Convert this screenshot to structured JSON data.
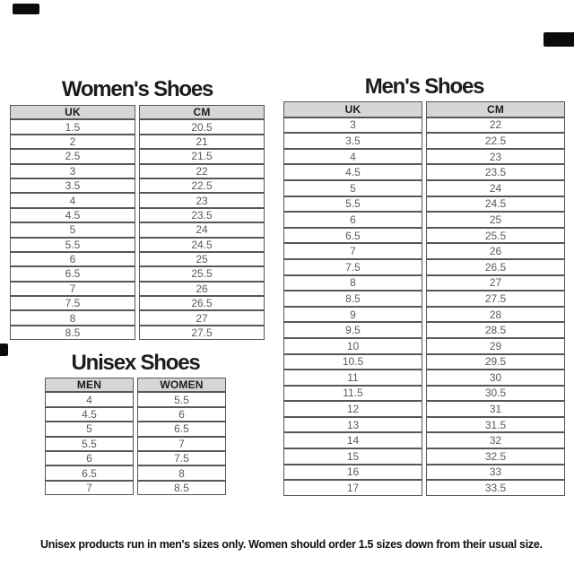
{
  "tables": {
    "womens": {
      "title": "Women's Shoes",
      "columns": [
        "UK",
        "CM"
      ],
      "rows": [
        [
          "1.5",
          "20.5"
        ],
        [
          "2",
          "21"
        ],
        [
          "2.5",
          "21.5"
        ],
        [
          "3",
          "22"
        ],
        [
          "3.5",
          "22.5"
        ],
        [
          "4",
          "23"
        ],
        [
          "4.5",
          "23.5"
        ],
        [
          "5",
          "24"
        ],
        [
          "5.5",
          "24.5"
        ],
        [
          "6",
          "25"
        ],
        [
          "6.5",
          "25.5"
        ],
        [
          "7",
          "26"
        ],
        [
          "7.5",
          "26.5"
        ],
        [
          "8",
          "27"
        ],
        [
          "8.5",
          "27.5"
        ]
      ]
    },
    "mens": {
      "title": "Men's Shoes",
      "columns": [
        "UK",
        "CM"
      ],
      "rows": [
        [
          "3",
          "22"
        ],
        [
          "3.5",
          "22.5"
        ],
        [
          "4",
          "23"
        ],
        [
          "4.5",
          "23.5"
        ],
        [
          "5",
          "24"
        ],
        [
          "5.5",
          "24.5"
        ],
        [
          "6",
          "25"
        ],
        [
          "6.5",
          "25.5"
        ],
        [
          "7",
          "26"
        ],
        [
          "7.5",
          "26.5"
        ],
        [
          "8",
          "27"
        ],
        [
          "8.5",
          "27.5"
        ],
        [
          "9",
          "28"
        ],
        [
          "9.5",
          "28.5"
        ],
        [
          "10",
          "29"
        ],
        [
          "10.5",
          "29.5"
        ],
        [
          "11",
          "30"
        ],
        [
          "11.5",
          "30.5"
        ],
        [
          "12",
          "31"
        ],
        [
          "13",
          "31.5"
        ],
        [
          "14",
          "32"
        ],
        [
          "15",
          "32.5"
        ],
        [
          "16",
          "33"
        ],
        [
          "17",
          "33.5"
        ]
      ]
    },
    "unisex": {
      "title": "Unisex Shoes",
      "columns": [
        "MEN",
        "WOMEN"
      ],
      "rows": [
        [
          "4",
          "5.5"
        ],
        [
          "4.5",
          "6"
        ],
        [
          "5",
          "6.5"
        ],
        [
          "5.5",
          "7"
        ],
        [
          "6",
          "7.5"
        ],
        [
          "6.5",
          "8"
        ],
        [
          "7",
          "8.5"
        ]
      ]
    }
  },
  "footer": {
    "note": "Unisex products run in men's sizes only. Women should order 1.5 sizes down from their usual size."
  },
  "colors": {
    "header-bg": "#d6d6d6",
    "border": "#57575a",
    "cell-text": "#5a5a5c",
    "heading-text": "#1c1c1e",
    "footer-text": "#0f0f10",
    "mark-color": "#0b0b0b"
  }
}
